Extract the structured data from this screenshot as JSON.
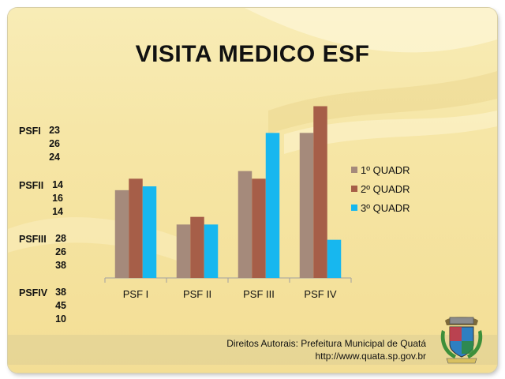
{
  "title": "VISITA MEDICO ESF",
  "side_labels": [
    {
      "name": "PSFI",
      "values": [
        "23",
        "26",
        "24"
      ]
    },
    {
      "name": "PSFII",
      "values": [
        "14",
        "16",
        "14"
      ]
    },
    {
      "name": "PSFIII",
      "values": [
        "28",
        "26",
        "38"
      ]
    },
    {
      "name": "PSFIV",
      "values": [
        "38",
        "45",
        "10"
      ]
    }
  ],
  "credits": {
    "line1": "Direitos Autorais: Prefeitura Municipal de Quatá",
    "line2": "http://www.quata.sp.gov.br"
  },
  "colors": {
    "series1": "#a58a7b",
    "series2": "#a65e48",
    "series3": "#17b7ef",
    "axis": "#a0a0a0"
  },
  "chart_data": {
    "type": "bar",
    "categories": [
      "PSF I",
      "PSF II",
      "PSF III",
      "PSF IV"
    ],
    "series": [
      {
        "name": "1º QUADR",
        "values": [
          23,
          14,
          28,
          38
        ]
      },
      {
        "name": "2º QUADR",
        "values": [
          26,
          16,
          26,
          45
        ]
      },
      {
        "name": "3º QUADR",
        "values": [
          24,
          14,
          38,
          10
        ]
      }
    ],
    "ylim": [
      0,
      48
    ],
    "grid": false,
    "legend": "right"
  }
}
